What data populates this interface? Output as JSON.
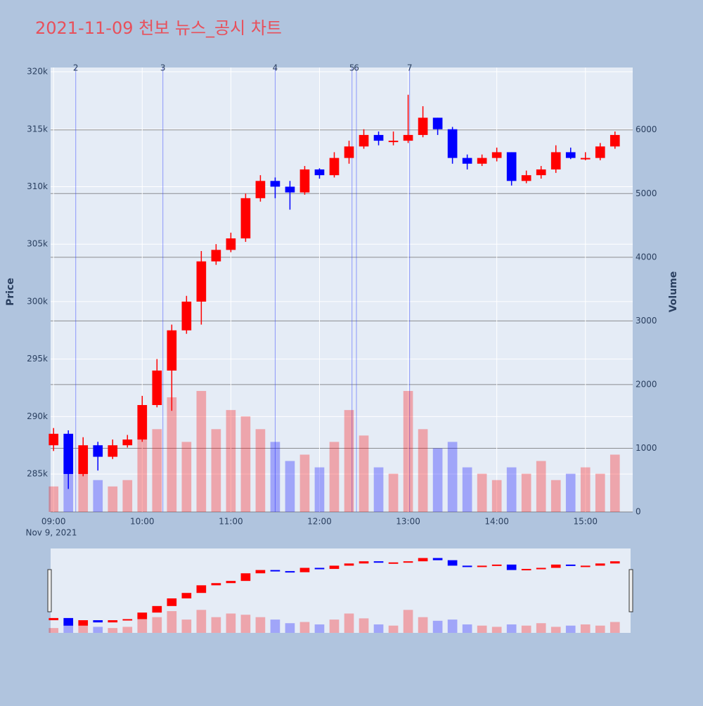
{
  "chart_data": {
    "type": "candlestick",
    "title": "2021-11-09 천보 뉴스_공시 차트",
    "date_label": "Nov 9, 2021",
    "y_label": "Price",
    "y2_label": "Volume",
    "x": [
      "09:00",
      "09:10",
      "09:20",
      "09:30",
      "09:40",
      "09:50",
      "10:00",
      "10:10",
      "10:20",
      "10:30",
      "10:40",
      "10:50",
      "11:00",
      "11:10",
      "11:20",
      "11:30",
      "11:40",
      "11:50",
      "12:00",
      "12:10",
      "12:20",
      "12:30",
      "12:40",
      "12:50",
      "13:00",
      "13:10",
      "13:20",
      "13:30",
      "13:40",
      "13:50",
      "14:00",
      "14:10",
      "14:20",
      "14:30",
      "14:40",
      "14:50",
      "15:00",
      "15:10",
      "15:20"
    ],
    "open": [
      287500,
      288500,
      285000,
      287500,
      286500,
      287500,
      288000,
      291000,
      294000,
      297500,
      300000,
      303500,
      304500,
      305500,
      309000,
      310500,
      310000,
      309500,
      311500,
      311000,
      312500,
      313500,
      314500,
      314000,
      314000,
      314500,
      316000,
      315000,
      312500,
      312000,
      312500,
      313000,
      310500,
      311000,
      311500,
      313000,
      312500,
      312500,
      313500
    ],
    "high": [
      289000,
      288800,
      288200,
      287800,
      288000,
      288400,
      291800,
      295000,
      298000,
      300500,
      304400,
      305000,
      306000,
      309400,
      311000,
      310800,
      310500,
      311800,
      311600,
      313000,
      314000,
      315000,
      314800,
      314800,
      318000,
      317000,
      316000,
      315200,
      312800,
      312800,
      313400,
      313000,
      311400,
      311800,
      313600,
      313400,
      313000,
      313800,
      314800
    ],
    "low": [
      287000,
      283700,
      284800,
      285300,
      286300,
      287300,
      287800,
      290800,
      290500,
      297200,
      298000,
      303200,
      304300,
      305200,
      308700,
      309000,
      308000,
      309300,
      310700,
      310800,
      312000,
      313300,
      313600,
      313600,
      313800,
      314300,
      314500,
      312000,
      311500,
      311800,
      312200,
      310100,
      310300,
      310700,
      311200,
      312400,
      312300,
      312300,
      313300
    ],
    "close": [
      288500,
      285000,
      287500,
      286500,
      287500,
      288000,
      291000,
      294000,
      297500,
      300000,
      303500,
      304500,
      305500,
      309000,
      310500,
      310000,
      309500,
      311500,
      311000,
      312500,
      313500,
      314500,
      314000,
      314000,
      314500,
      316000,
      315000,
      312500,
      312000,
      312500,
      313000,
      310500,
      311000,
      311500,
      313000,
      312500,
      312500,
      313500,
      314500
    ],
    "volume": [
      400,
      900,
      600,
      500,
      400,
      500,
      1600,
      1300,
      1800,
      1100,
      1900,
      1300,
      1600,
      1500,
      1300,
      1100,
      800,
      900,
      700,
      1100,
      1600,
      1200,
      700,
      600,
      1900,
      1300,
      1000,
      1100,
      700,
      600,
      500,
      700,
      600,
      800,
      500,
      600,
      700,
      600,
      900
    ],
    "up_color": "#ff0000",
    "down_color": "#0000ff",
    "events": [
      {
        "label": "2",
        "x": "09:15"
      },
      {
        "label": "3",
        "x": "10:14"
      },
      {
        "label": "4",
        "x": "11:30"
      },
      {
        "label": "5",
        "x": "12:22"
      },
      {
        "label": "6",
        "x": "12:25"
      },
      {
        "label": "7",
        "x": "13:01"
      }
    ],
    "xlim": [
      "08:58",
      "15:32"
    ],
    "xticks": [
      "09:00",
      "10:00",
      "11:00",
      "12:00",
      "13:00",
      "14:00",
      "15:00"
    ],
    "ylim": [
      281700,
      320370
    ],
    "yticks": [
      {
        "value": 285000,
        "label": "285k"
      },
      {
        "value": 290000,
        "label": "290k"
      },
      {
        "value": 295000,
        "label": "295k"
      },
      {
        "value": 300000,
        "label": "300k"
      },
      {
        "value": 305000,
        "label": "305k"
      },
      {
        "value": 310000,
        "label": "310k"
      },
      {
        "value": 315000,
        "label": "315k"
      },
      {
        "value": 320000,
        "label": "320k"
      }
    ],
    "y2lim": [
      0,
      6980
    ],
    "y2ticks": [
      0,
      1000,
      2000,
      3000,
      4000,
      5000,
      6000
    ],
    "grid": true,
    "rangeslider": true
  }
}
